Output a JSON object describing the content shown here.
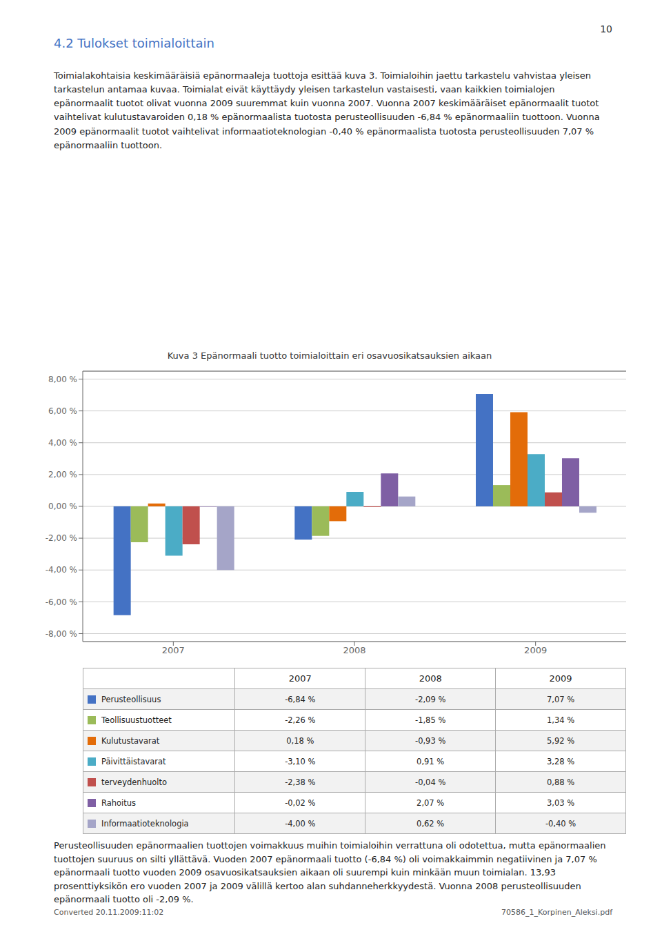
{
  "chart_data": {
    "type": "bar",
    "title": "Kuva 3 Epänormaali tuotto toimialoittain eri osavuosikatsauksien aikaan",
    "annotations": [
      "10",
      "4.2 Tulokset toimialoittain",
      "Toimialakohtaisia keskimääräisiä epänormaaleja tuottoja esittää kuva 3. Toimialoihin jaettu tarkastelu vahvistaa yleisen tarkastelun antamaa kuvaa. Toimialat eivät käyttäydy yleisen tarkastelun vastaisesti, vaan kaikkien toimialojen epänormaalit tuotot olivat vuonna 2009 suuremmat kuin vuonna 2007. Vuonna 2007 keskimääräiset epänormaalit tuotot vaihtelivat kulutustavaroiden 0,18 % epänormaalista tuotosta perusteollisuuden -6,84 % epänormaaliin tuottoon. Vuonna 2009 epänormaalit tuotot vaihtelivat informaatioteknologian -0,40 % epänormaalista tuotosta perusteollisuuden 7,07 % epänormaaliin tuottoon.",
      "Perusteollisuuden epänormaalien tuottojen voimakkuus muihin toimialoihin verrattuna oli odotettua, mutta epänormaalien tuottojen suuruus on silti yllättävä. Vuoden 2007 epänormaali tuotto (-6,84 %) oli voimakkaimmin negatiivinen ja 7,07 % epänormaali tuotto vuoden 2009 osavuosikatsauksien aikaan oli suurempi kuin minkään muun toimialan. 13,93 prosenttiyksikön ero vuoden 2007 ja 2009 välillä kertoo alan suhdanneherkkyydestä. Vuonna 2008 perusteollisuuden epänormaali tuotto oli -2,09 %.",
      "Converted 20.11.2009:11:02",
      "70586_1_Korpinen_Aleksi.pdf"
    ],
    "categories": [
      "2007",
      "2008",
      "2009"
    ],
    "series": [
      {
        "name": "Perusteollisuus",
        "color": "#4472C4",
        "values": [
          -6.84,
          -2.09,
          7.07
        ],
        "value_labels": [
          "-6,84 %",
          "-2,09 %",
          "7,07 %"
        ]
      },
      {
        "name": "Teollisuustuotteet",
        "color": "#9BBB59",
        "values": [
          -2.26,
          -1.85,
          1.34
        ],
        "value_labels": [
          "-2,26 %",
          "-1,85 %",
          "1,34 %"
        ]
      },
      {
        "name": "Kulutustavarat",
        "color": "#E36C09",
        "values": [
          0.18,
          -0.93,
          5.92
        ],
        "value_labels": [
          "0,18 %",
          "-0,93 %",
          "5,92 %"
        ]
      },
      {
        "name": "Päivittäistavarat",
        "color": "#4BACC6",
        "values": [
          -3.1,
          0.91,
          3.28
        ],
        "value_labels": [
          "-3,10 %",
          "0,91 %",
          "3,28 %"
        ]
      },
      {
        "name": "terveydenhuolto",
        "color": "#C0504D",
        "values": [
          -2.38,
          -0.04,
          0.88
        ],
        "value_labels": [
          "-2,38 %",
          "-0,04 %",
          "0,88 %"
        ]
      },
      {
        "name": "Rahoitus",
        "color": "#7F5FA4",
        "values": [
          -0.02,
          2.07,
          3.03
        ],
        "value_labels": [
          "-0,02 %",
          "2,07 %",
          "3,03 %"
        ]
      },
      {
        "name": "Informaatioteknologia",
        "color": "#A5A5C8",
        "values": [
          -4.0,
          0.62,
          -0.4
        ],
        "value_labels": [
          "-4,00 %",
          "0,62 %",
          "-0,40 %"
        ]
      }
    ],
    "ylim": [
      -8.5,
      8.5
    ],
    "yticks": [
      {
        "value": -8.0,
        "label": "-8,00 %"
      },
      {
        "value": -6.0,
        "label": "-6,00 %"
      },
      {
        "value": -4.0,
        "label": "-4,00 %"
      },
      {
        "value": -2.0,
        "label": "-2,00 %"
      },
      {
        "value": 0.0,
        "label": "0,00 %"
      },
      {
        "value": 2.0,
        "label": "2,00 %"
      },
      {
        "value": 4.0,
        "label": "4,00 %"
      },
      {
        "value": 6.0,
        "label": "6,00 %"
      },
      {
        "value": 8.0,
        "label": "8,00 %"
      }
    ],
    "grid": true
  }
}
